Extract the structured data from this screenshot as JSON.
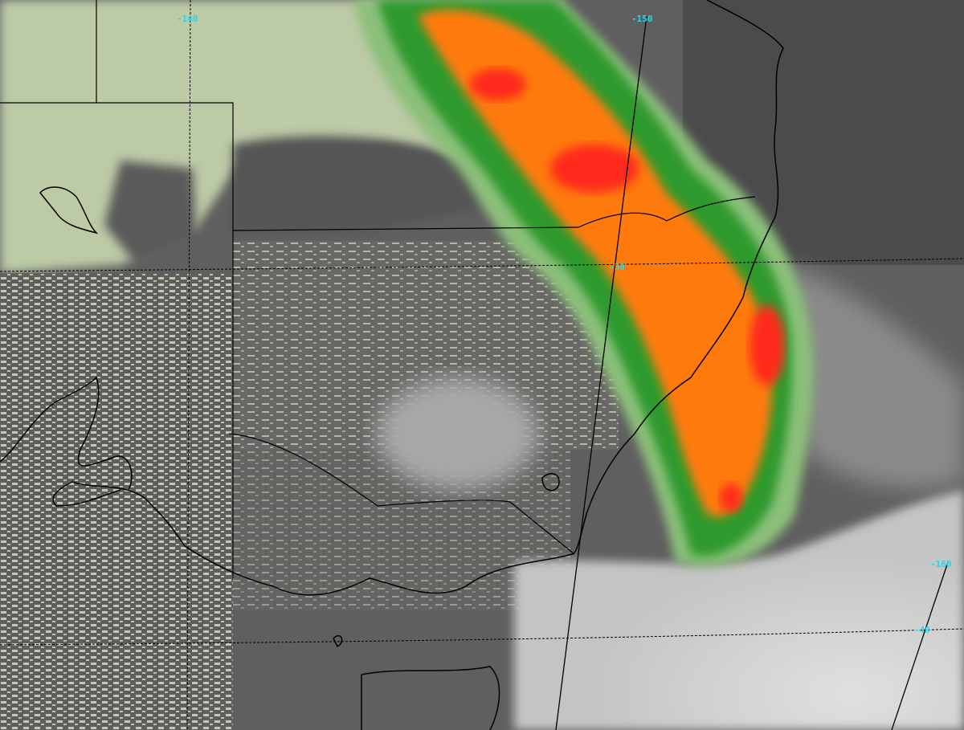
{
  "image": {
    "kind": "enhanced infrared satellite image",
    "colors": {
      "background_gray": "#5f5f5f",
      "dark_gray": "#4a4a4a",
      "pale_green": "#b9c9a4",
      "beige": "#d8d8b8",
      "green": "#2f9a2f",
      "light_green": "#8cc07a",
      "orange": "#ff7a10",
      "red": "#ff2020",
      "cold_cloud": "#d6d6d6",
      "grid_label": "#27d8e8",
      "outline": "#000000"
    }
  },
  "grid_labels": {
    "lon_140": "-140",
    "lon_150": "-150",
    "lon_160": "-160",
    "lat_30": "-30",
    "lat_40": "-40"
  }
}
